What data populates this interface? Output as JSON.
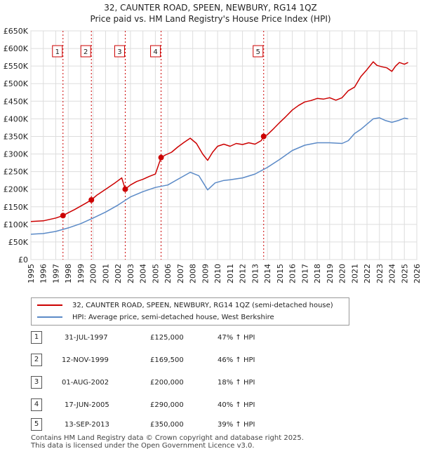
{
  "title_line1": "32, CAUNTER ROAD, SPEEN, NEWBURY, RG14 1QZ",
  "title_line2": "Price paid vs. HM Land Registry's House Price Index (HPI)",
  "legend": {
    "property": "32, CAUNTER ROAD, SPEEN, NEWBURY, RG14 1QZ (semi-detached house)",
    "hpi": "HPI: Average price, semi-detached house, West Berkshire"
  },
  "colors": {
    "property": "#cc0000",
    "hpi": "#5b8ac7",
    "marker": "#cc0000",
    "vline": "#cc0000"
  },
  "chart_data": {
    "type": "line",
    "ylim": [
      0,
      650000
    ],
    "xlim": [
      1995,
      2026
    ],
    "yticks": [
      {
        "v": 0,
        "label": "£0"
      },
      {
        "v": 50000,
        "label": "£50K"
      },
      {
        "v": 100000,
        "label": "£100K"
      },
      {
        "v": 150000,
        "label": "£150K"
      },
      {
        "v": 200000,
        "label": "£200K"
      },
      {
        "v": 250000,
        "label": "£250K"
      },
      {
        "v": 300000,
        "label": "£300K"
      },
      {
        "v": 350000,
        "label": "£350K"
      },
      {
        "v": 400000,
        "label": "£400K"
      },
      {
        "v": 450000,
        "label": "£450K"
      },
      {
        "v": 500000,
        "label": "£500K"
      },
      {
        "v": 550000,
        "label": "£550K"
      },
      {
        "v": 600000,
        "label": "£600K"
      },
      {
        "v": 650000,
        "label": "£650K"
      }
    ],
    "xticks": [
      "1995",
      "1996",
      "1997",
      "1998",
      "1999",
      "2000",
      "2001",
      "2002",
      "2003",
      "2004",
      "2005",
      "2006",
      "2007",
      "2008",
      "2009",
      "2010",
      "2011",
      "2012",
      "2013",
      "2014",
      "2015",
      "2016",
      "2017",
      "2018",
      "2019",
      "2020",
      "2021",
      "2022",
      "2023",
      "2024",
      "2025",
      "2026"
    ],
    "series": [
      {
        "name": "32, CAUNTER ROAD, SPEEN, NEWBURY, RG14 1QZ (semi-detached house)",
        "x": [
          1995.0,
          1996.0,
          1996.5,
          1997.0,
          1997.58,
          1998.0,
          1998.5,
          1999.0,
          1999.5,
          1999.86,
          2000.3,
          2000.8,
          2001.3,
          2001.8,
          2002.3,
          2002.58,
          2003.0,
          2003.5,
          2004.0,
          2004.5,
          2005.0,
          2005.46,
          2005.8,
          2006.3,
          2006.8,
          2007.3,
          2007.8,
          2008.3,
          2008.8,
          2009.2,
          2009.6,
          2010.0,
          2010.5,
          2011.0,
          2011.5,
          2012.0,
          2012.5,
          2013.0,
          2013.5,
          2013.7,
          2014.0,
          2014.5,
          2015.0,
          2015.5,
          2016.0,
          2016.5,
          2017.0,
          2017.5,
          2018.0,
          2018.5,
          2019.0,
          2019.5,
          2020.0,
          2020.5,
          2021.0,
          2021.5,
          2022.0,
          2022.5,
          2022.8,
          2023.2,
          2023.6,
          2024.0,
          2024.3,
          2024.6,
          2025.0,
          2025.3
        ],
        "y": [
          108000,
          110000,
          114000,
          118000,
          125000,
          133000,
          142000,
          152000,
          162000,
          169500,
          183000,
          195000,
          207000,
          219000,
          232000,
          200000,
          212000,
          222000,
          228000,
          236000,
          243000,
          290000,
          297000,
          305000,
          320000,
          333000,
          345000,
          330000,
          300000,
          282000,
          305000,
          322000,
          328000,
          322000,
          330000,
          327000,
          332000,
          328000,
          338000,
          350000,
          355000,
          372000,
          390000,
          407000,
          425000,
          438000,
          448000,
          452000,
          458000,
          456000,
          460000,
          453000,
          460000,
          480000,
          490000,
          520000,
          540000,
          562000,
          552000,
          548000,
          545000,
          535000,
          550000,
          560000,
          555000,
          560000
        ]
      },
      {
        "name": "HPI: Average price, semi-detached house, West Berkshire",
        "x": [
          1995.0,
          1996.0,
          1997.0,
          1998.0,
          1999.0,
          2000.0,
          2001.0,
          2002.0,
          2003.0,
          2004.0,
          2005.0,
          2006.0,
          2007.0,
          2007.8,
          2008.5,
          2009.2,
          2009.8,
          2010.5,
          2011.0,
          2012.0,
          2013.0,
          2014.0,
          2015.0,
          2016.0,
          2017.0,
          2018.0,
          2019.0,
          2020.0,
          2020.5,
          2021.0,
          2021.5,
          2022.0,
          2022.5,
          2023.0,
          2023.5,
          2024.0,
          2024.5,
          2025.0,
          2025.3
        ],
        "y": [
          72000,
          74000,
          80000,
          90000,
          102000,
          118000,
          135000,
          155000,
          178000,
          193000,
          205000,
          212000,
          232000,
          248000,
          238000,
          198000,
          218000,
          225000,
          227000,
          232000,
          243000,
          262000,
          285000,
          310000,
          325000,
          332000,
          332000,
          330000,
          338000,
          358000,
          370000,
          385000,
          400000,
          403000,
          395000,
          390000,
          395000,
          402000,
          400000
        ]
      }
    ],
    "sales": [
      {
        "n": "1",
        "x": 1997.58,
        "y": 125000
      },
      {
        "n": "2",
        "x": 1999.86,
        "y": 169500
      },
      {
        "n": "3",
        "x": 2002.58,
        "y": 200000
      },
      {
        "n": "4",
        "x": 2005.46,
        "y": 290000
      },
      {
        "n": "5",
        "x": 2013.7,
        "y": 350000
      }
    ]
  },
  "sales_table": [
    {
      "n": "1",
      "date": "31-JUL-1997",
      "price": "£125,000",
      "hpi": "47% ↑ HPI"
    },
    {
      "n": "2",
      "date": "12-NOV-1999",
      "price": "£169,500",
      "hpi": "46% ↑ HPI"
    },
    {
      "n": "3",
      "date": "01-AUG-2002",
      "price": "£200,000",
      "hpi": "18% ↑ HPI"
    },
    {
      "n": "4",
      "date": "17-JUN-2005",
      "price": "£290,000",
      "hpi": "40% ↑ HPI"
    },
    {
      "n": "5",
      "date": "13-SEP-2013",
      "price": "£350,000",
      "hpi": "39% ↑ HPI"
    }
  ],
  "footer": {
    "line1": "Contains HM Land Registry data © Crown copyright and database right 2025.",
    "line2": "This data is licensed under the Open Government Licence v3.0."
  }
}
